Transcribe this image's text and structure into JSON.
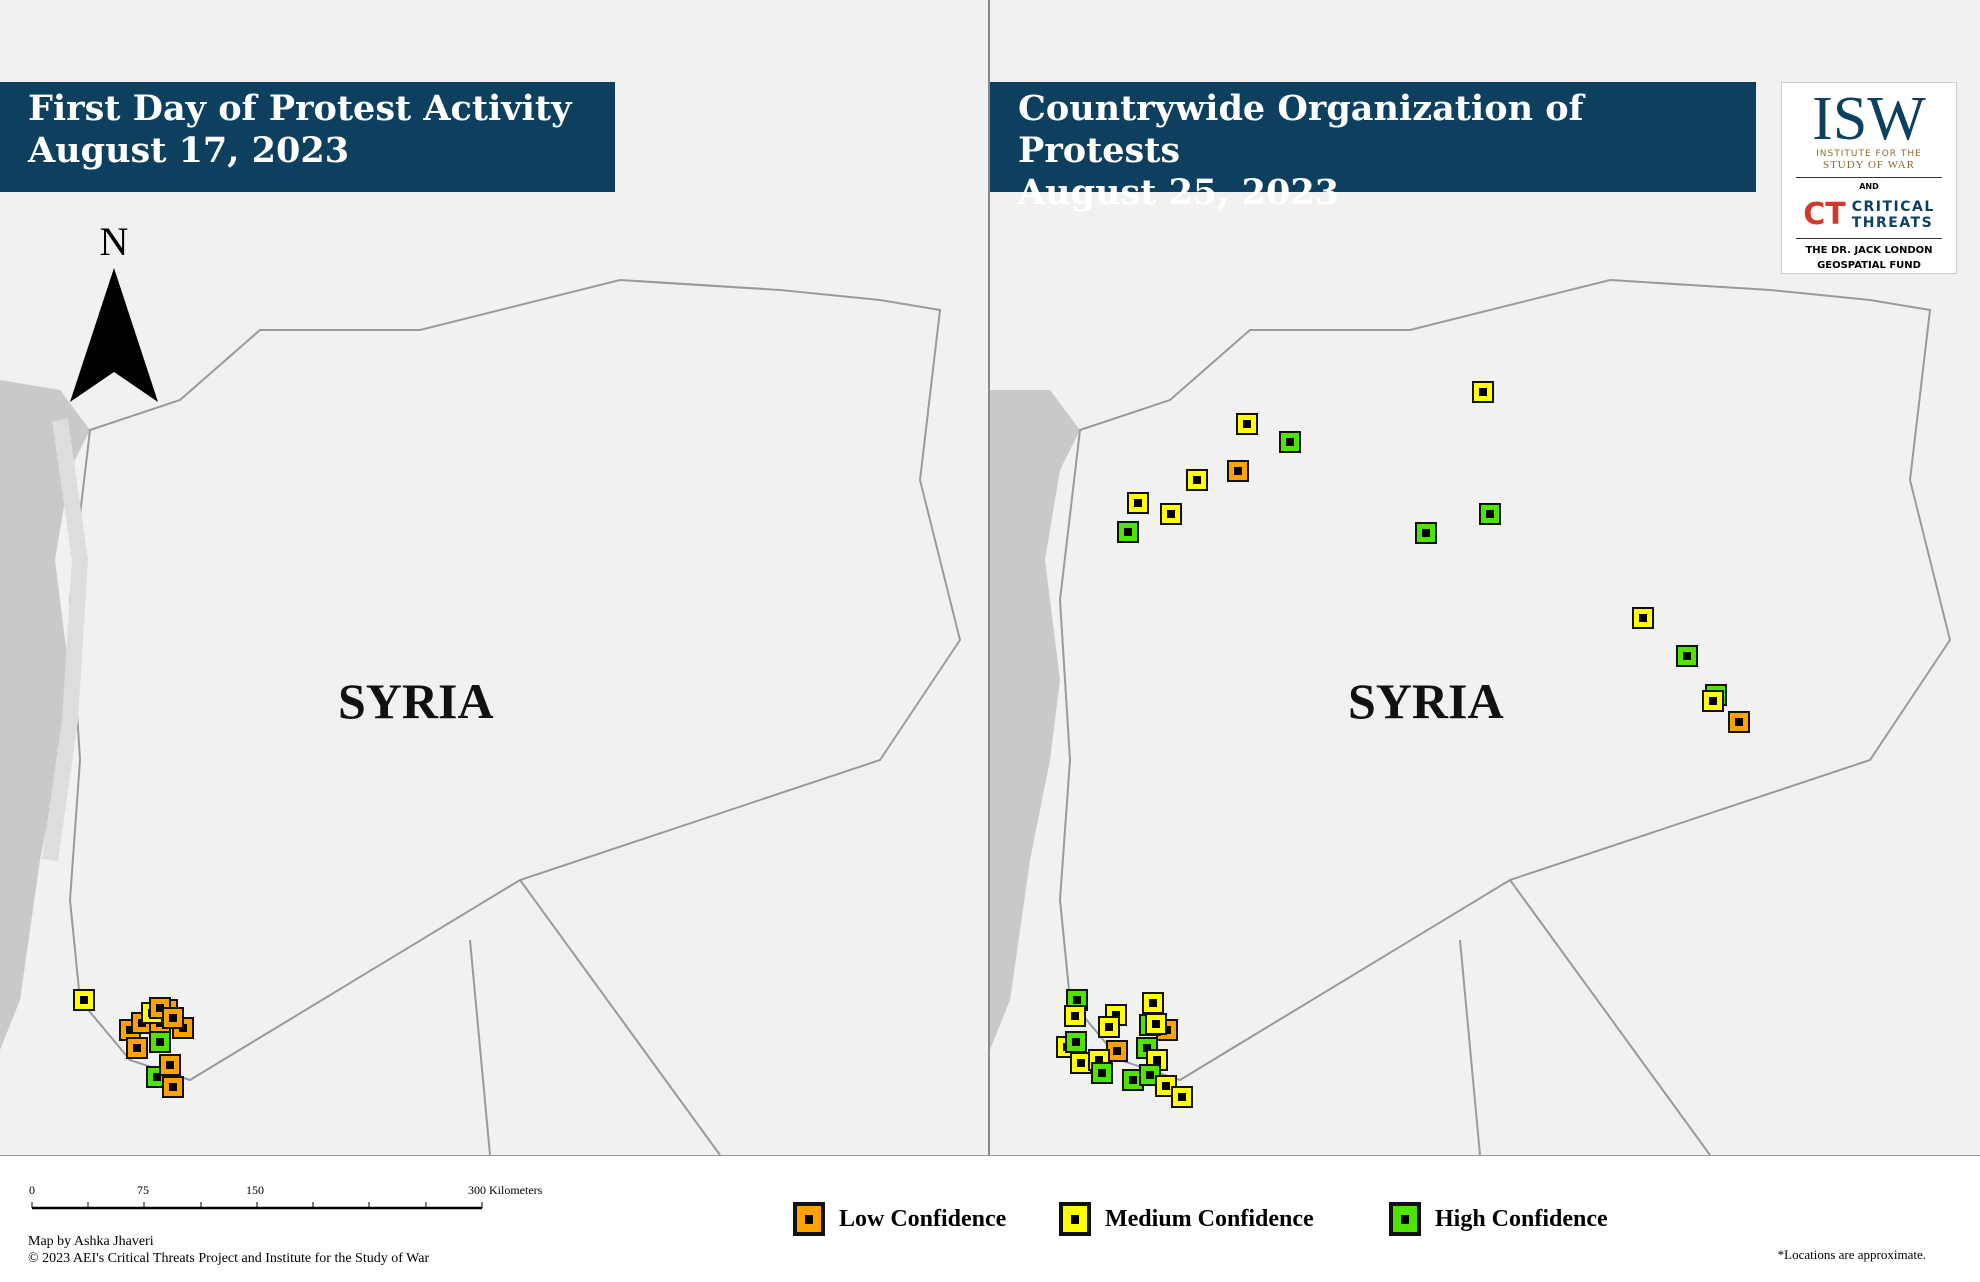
{
  "colors": {
    "banner": "#0d3f5e",
    "low": "#ffa200",
    "medium": "#ffff00",
    "high": "#4ee400",
    "map_land": "#f1f1ef",
    "sea": "#c9c9c9"
  },
  "left_panel": {
    "title_line1": "First Day of Protest Activity",
    "title_line2": "August 17, 2023",
    "country_label": "SYRIA",
    "north_label": "N",
    "markers": [
      "medium",
      "low",
      "low",
      "low",
      "low",
      "low",
      "medium",
      "low",
      "low",
      "high",
      "low",
      "high",
      "low",
      "low"
    ]
  },
  "right_panel": {
    "title_line1": "Countrywide Organization of Protests",
    "title_line2": "August 25, 2023",
    "country_label": "SYRIA",
    "markers": [
      "medium",
      "medium",
      "high",
      "low",
      "medium",
      "medium",
      "medium",
      "high",
      "high",
      "high",
      "medium",
      "high",
      "high",
      "medium",
      "low",
      "high",
      "medium",
      "medium",
      "medium",
      "medium",
      "low",
      "high",
      "medium",
      "medium",
      "high",
      "low",
      "high",
      "medium",
      "medium",
      "medium",
      "high",
      "high",
      "high",
      "medium",
      "medium"
    ]
  },
  "logo": {
    "isw": "ISW",
    "isw_sub1": "INSTITUTE FOR THE",
    "isw_sub2": "STUDY OF WAR",
    "and": "AND",
    "ct_mark": "CT",
    "ct_line1": "CRITICAL",
    "ct_line2": "THREATS",
    "fund_line1": "THE DR. JACK LONDON",
    "fund_line2": "GEOSPATIAL FUND"
  },
  "scale_bar": {
    "ticks": [
      "0",
      "75",
      "150",
      "300 Kilometers"
    ]
  },
  "legend": [
    {
      "label": "Low Confidence",
      "level": "low"
    },
    {
      "label": "Medium Confidence",
      "level": "medium"
    },
    {
      "label": "High Confidence",
      "level": "high"
    }
  ],
  "credits": {
    "author": "Map by Ashka Jhaveri",
    "copyright": "© 2023 AEI's Critical Threats Project and Institute for the Study of War"
  },
  "note": "*Locations are approximate."
}
